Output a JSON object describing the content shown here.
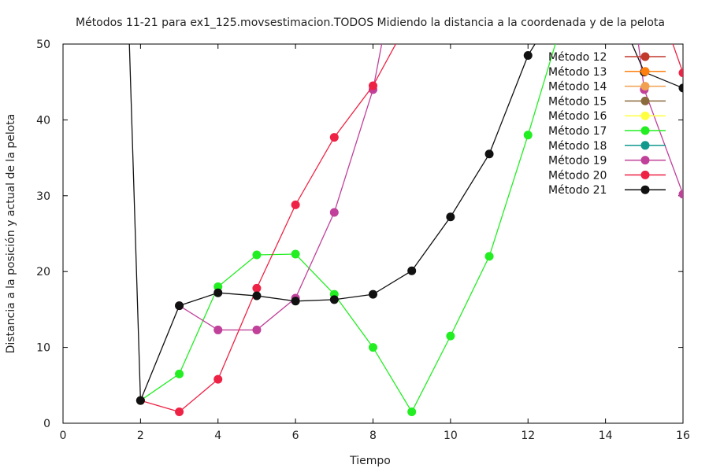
{
  "chart_data": {
    "type": "line",
    "title": "Métodos 11-21 para ex1_125.movsestimacion.TODOS Midiendo la distancia a la coordenada y de la pelota",
    "xlabel": "Tiempo",
    "ylabel": "Distancia a la posición y actual de la pelota",
    "xlim": [
      0,
      16
    ],
    "ylim": [
      0,
      50
    ],
    "xticks": [
      0,
      2,
      4,
      6,
      8,
      10,
      12,
      14,
      16
    ],
    "yticks": [
      0,
      10,
      20,
      30,
      40,
      50
    ],
    "grid": false,
    "legend_position": "top-right",
    "series": [
      {
        "name": "Método 12",
        "color": "#c0392b",
        "x": [],
        "y": []
      },
      {
        "name": "Método 13",
        "color": "#ff7f0e",
        "x": [],
        "y": []
      },
      {
        "name": "Método 14",
        "color": "#f0a050",
        "x": [],
        "y": []
      },
      {
        "name": "Método 15",
        "color": "#8b6b3d",
        "x": [],
        "y": []
      },
      {
        "name": "Método 16",
        "color": "#ffff40",
        "x": [],
        "y": []
      },
      {
        "name": "Método 17",
        "color": "#22ee22",
        "x": [
          2,
          3,
          4,
          5,
          6,
          7,
          8,
          9,
          10,
          11,
          12,
          13
        ],
        "y": [
          3,
          6.5,
          18,
          22.2,
          22.3,
          17,
          10,
          1.5,
          11.5,
          22,
          38,
          55
        ]
      },
      {
        "name": "Método 18",
        "color": "#11998e",
        "x": [],
        "y": []
      },
      {
        "name": "Método 19",
        "color": "#c0409a",
        "x": [
          3,
          4,
          5,
          6,
          7,
          8,
          8.3,
          14.8,
          15,
          16
        ],
        "y": [
          15.5,
          12.3,
          12.3,
          16.5,
          27.8,
          44,
          52,
          52,
          44,
          30.2
        ]
      },
      {
        "name": "Método 20",
        "color": "#ee2244",
        "x": [
          2,
          3,
          4,
          5,
          6,
          7,
          8,
          8.8,
          15.6,
          16
        ],
        "y": [
          3,
          1.5,
          5.8,
          17.8,
          28.8,
          37.7,
          44.5,
          52,
          52,
          46.2
        ]
      },
      {
        "name": "Método 21",
        "color": "#111111",
        "x": [
          1.7,
          2,
          3,
          4,
          5,
          6,
          7,
          8,
          9,
          10,
          11,
          12,
          12.3,
          14.6,
          15,
          16
        ],
        "y": [
          52,
          3,
          15.5,
          17.2,
          16.8,
          16.1,
          16.3,
          17,
          20.1,
          27.2,
          35.5,
          48.5,
          51,
          51,
          46.3,
          44.2
        ]
      }
    ]
  }
}
